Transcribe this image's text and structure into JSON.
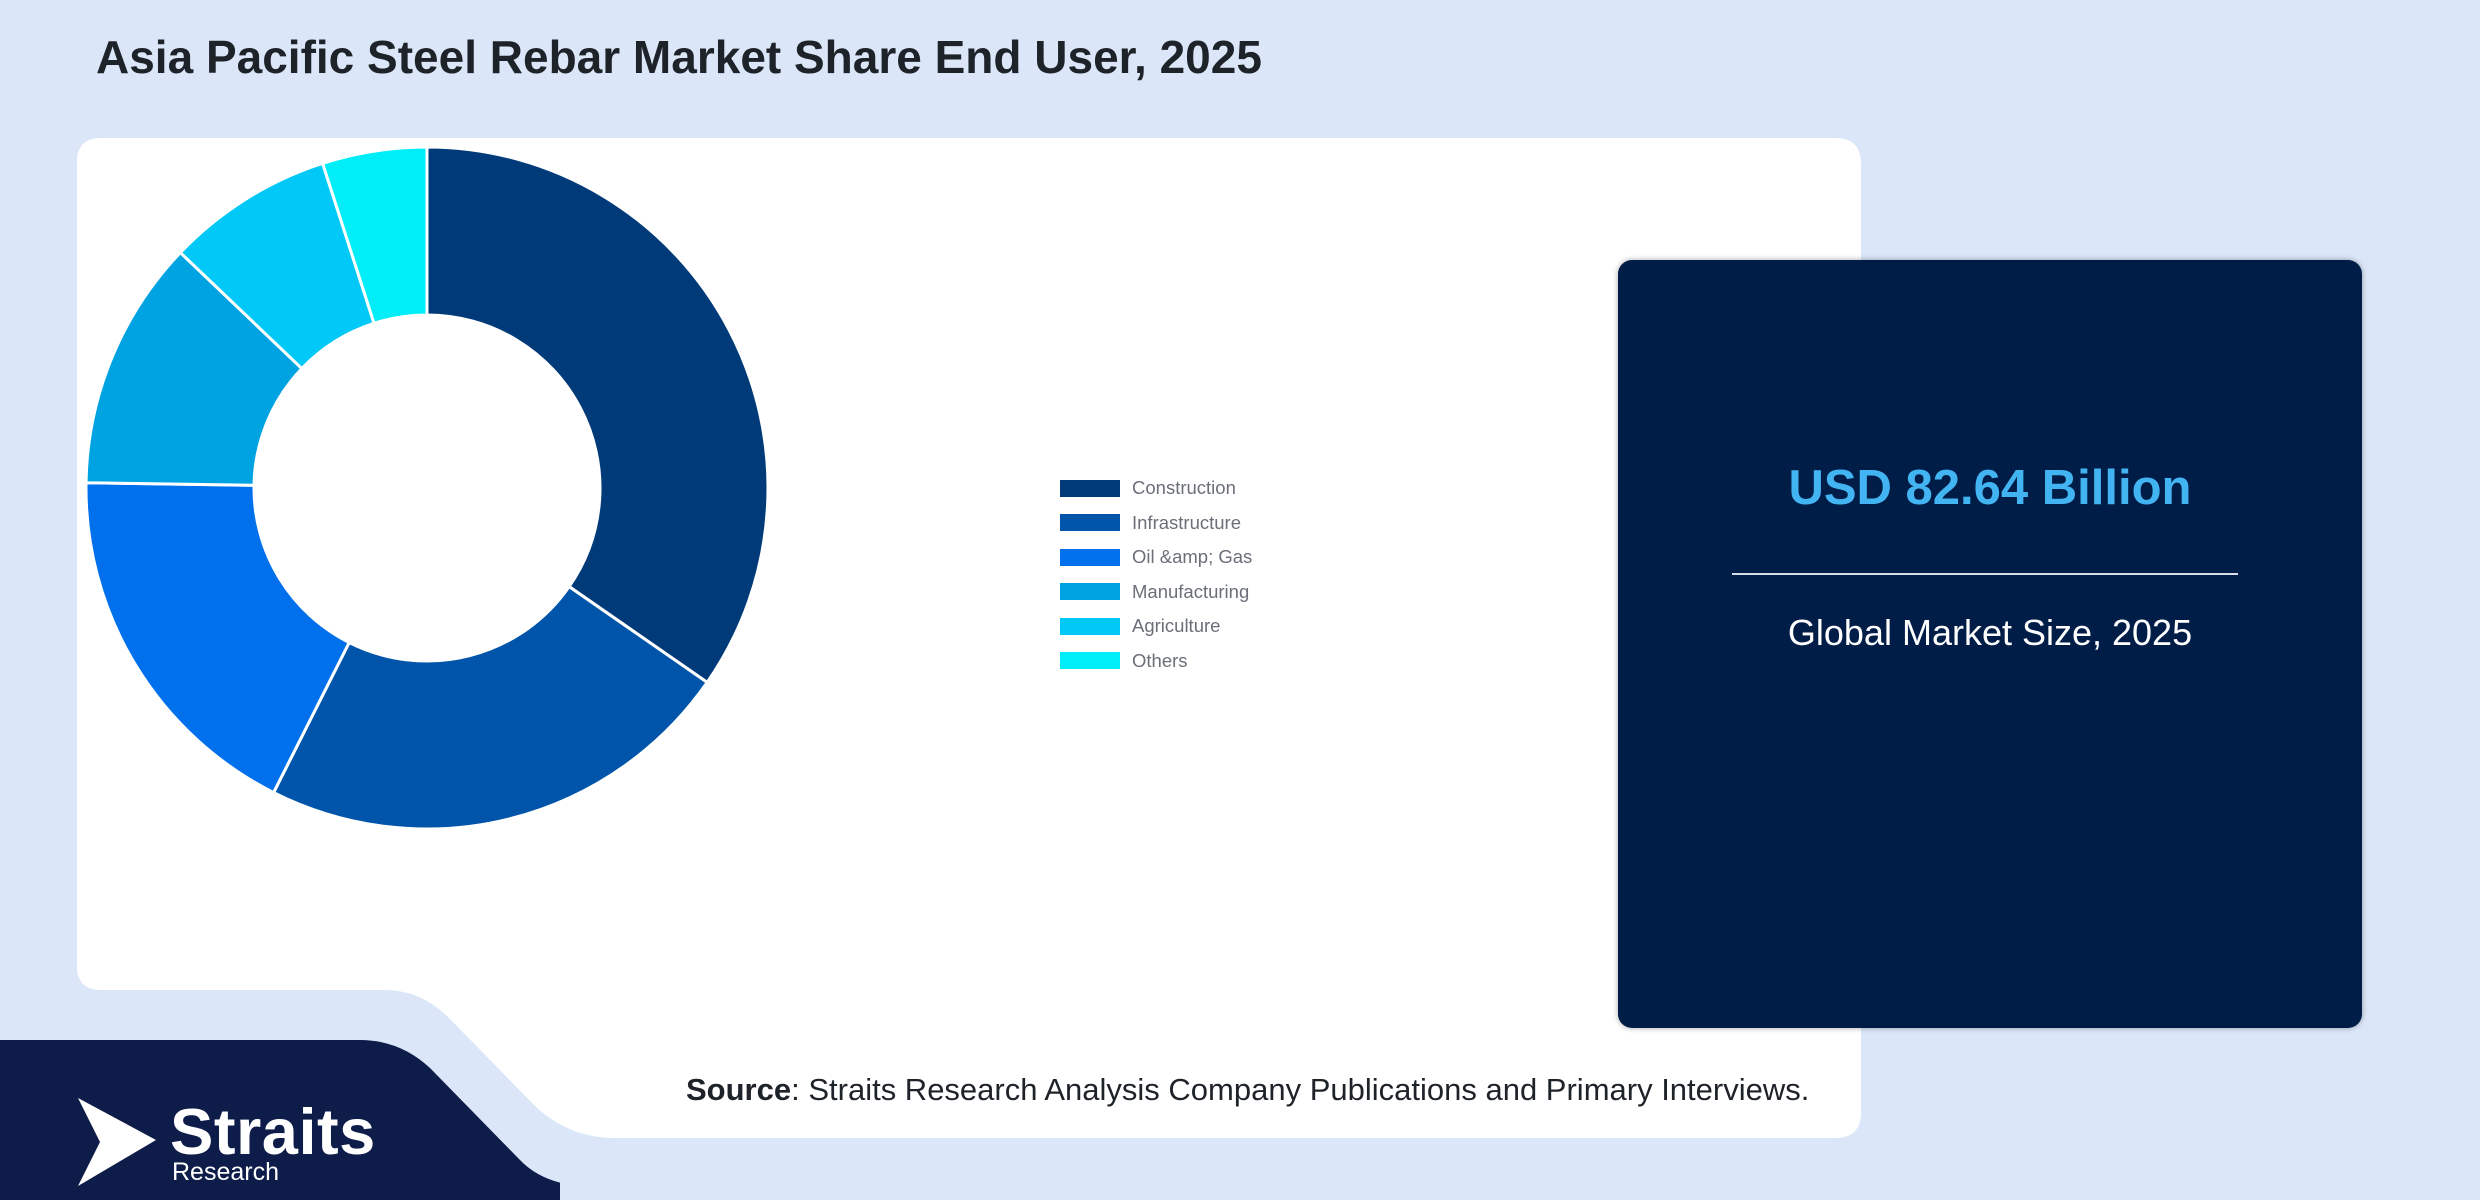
{
  "header": {
    "title": "Asia Pacific Steel Rebar Market Share End User, 2025"
  },
  "chart_data": {
    "type": "pie",
    "style": "donut",
    "categories": [
      "Construction",
      "Infrastructure",
      "Oil &amp; Gas",
      "Manufacturing",
      "Agriculture",
      "Others"
    ],
    "values": [
      35,
      23,
      18,
      12,
      8,
      5
    ],
    "unit": "%",
    "colors": [
      "#003a78",
      "#0055aa",
      "#0070ec",
      "#00a3e2",
      "#00c9f7",
      "#00eef8"
    ],
    "legend_position": "right"
  },
  "stat_card": {
    "value": "USD 82.64 Billion",
    "label": "Global Market Size, 2025"
  },
  "source": {
    "prefix": "Source",
    "text": ": Straits Research Analysis Company Publications and Primary Interviews."
  },
  "brand": {
    "name": "Straits",
    "sub": "Research"
  }
}
